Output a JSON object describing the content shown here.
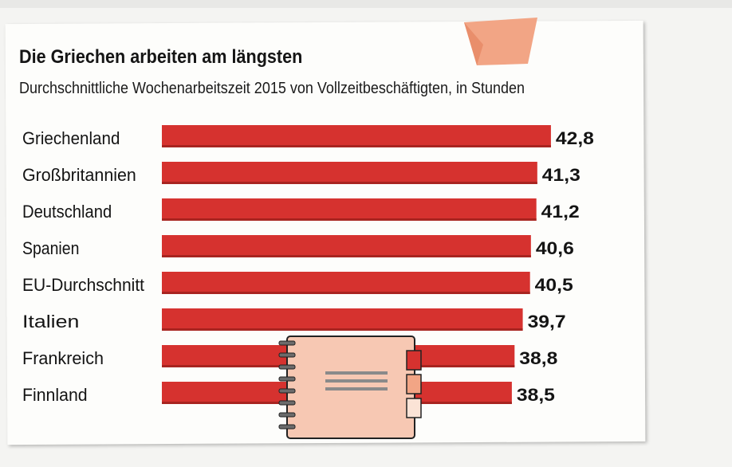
{
  "chart_data": {
    "type": "bar",
    "orientation": "horizontal",
    "title": "Die Griechen arbeiten am längsten",
    "subtitle": "Durchschnittliche Wochenarbeitszeit 2015 von Vollzeitbeschäftigten, in Stunden",
    "categories": [
      "Griechenland",
      "Großbritannien",
      "Deutschland",
      "Spanien",
      "EU-Durchschnitt",
      "Italien",
      "Frankreich",
      "Finnland"
    ],
    "values": [
      42.8,
      41.3,
      41.2,
      40.6,
      40.5,
      39.7,
      38.8,
      38.5
    ],
    "value_labels": [
      "42,8",
      "41,3",
      "41,2",
      "40,6",
      "40,5",
      "39,7",
      "38,8",
      "38,5"
    ],
    "bar_color": "#d6322f",
    "grid": false,
    "legend": "none"
  },
  "decorations": {
    "corner_icon": "folded-paper-corner-icon",
    "notebook_icon": "spiral-notebook-icon",
    "colors": {
      "accent": "#f2a585",
      "notebook_body": "#f7c8b3",
      "spiral": "#6b6b6b"
    }
  }
}
